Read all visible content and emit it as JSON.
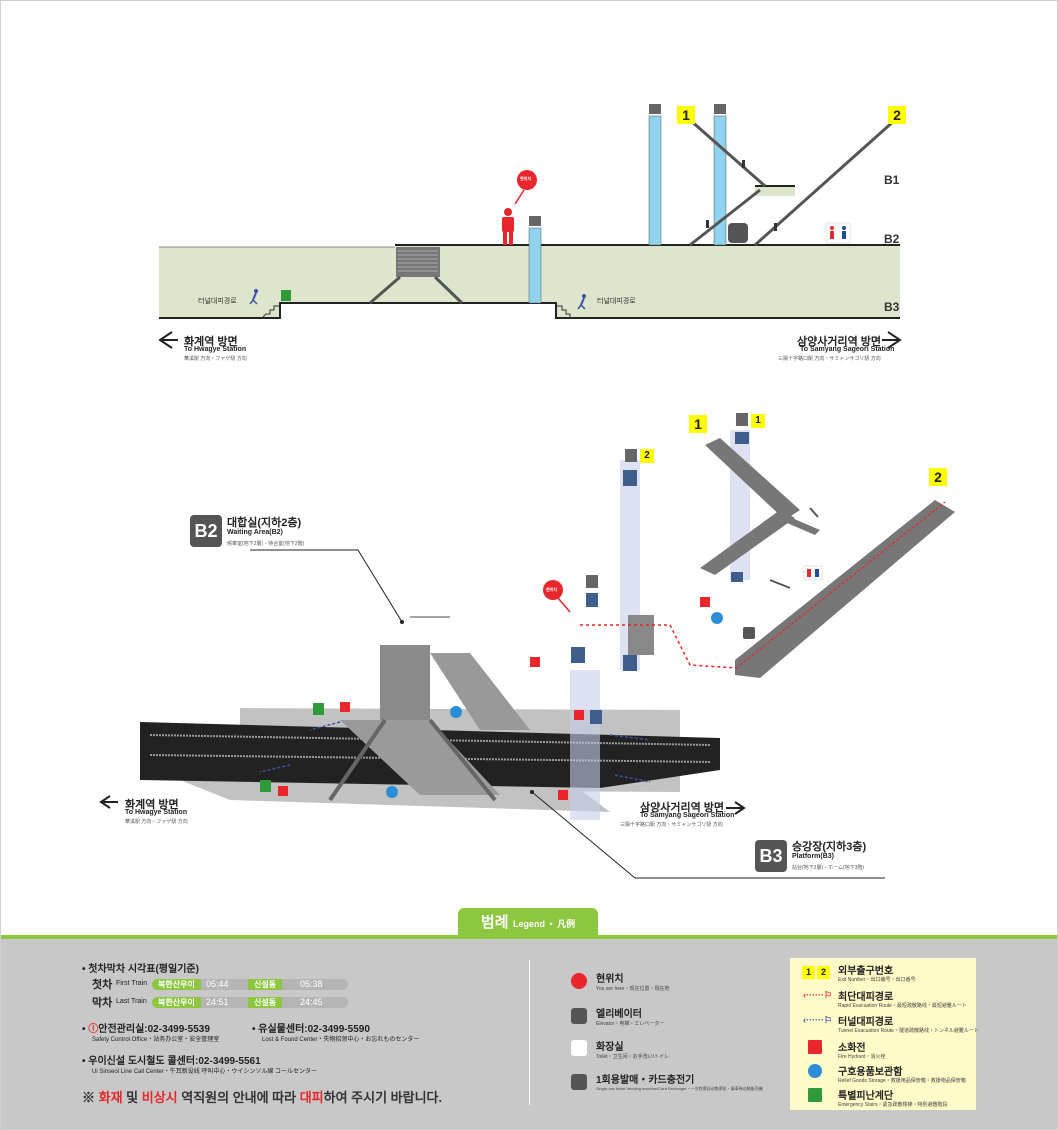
{
  "section_top": {
    "levels": [
      "B1",
      "B2",
      "B3"
    ],
    "exits": [
      "1",
      "2"
    ],
    "here_badge": "현위치",
    "tunnel_route_left": "터널대피경로",
    "tunnel_route_right": "터널대피경로",
    "left_dir": {
      "ko": "화계역 방면",
      "en": "To Hwagye Station",
      "jp": "華溪駅 方向・ファゲ駅 方向"
    },
    "right_dir": {
      "ko": "삼양사거리역 방면",
      "en": "To Samyang Sageori Station",
      "jp": "三陽十字路口駅 方向・サミャンサゴリ駅 方向"
    }
  },
  "section_iso": {
    "exits": [
      "1",
      "2"
    ],
    "elevator_nums": [
      "1",
      "2"
    ],
    "b2": {
      "code": "B2",
      "ko": "대합실(지하2층)",
      "en": "Waiting Area(B2)",
      "jp": "候車室(地下2層)・待合室(地下2階)"
    },
    "b3": {
      "code": "B3",
      "ko": "승강장(지하3층)",
      "en": "Platform(B3)",
      "jp": "站台(地下3層)・ホーム(地下3階)"
    },
    "here_badge": "현위치",
    "left_dir": {
      "ko": "화계역 방면",
      "en": "To Hwagye Station",
      "jp": "華溪駅 方向・ファゲ駅 方向"
    },
    "right_dir": {
      "ko": "삼양사거리역 방면",
      "en": "To Samyang Sageori Station",
      "jp": "三陽十字路口駅 方向・サミャンサゴリ駅 方向"
    }
  },
  "legend": {
    "title_ko": "범례",
    "title_en": "Legend",
    "title_cn": "凡例",
    "timetable_title": "첫차막차 시각표(평일기준)",
    "first_train": {
      "ko": "첫차",
      "en": "First Train",
      "rows": [
        {
          "station": "북한산우이",
          "time": "05:44"
        },
        {
          "station": "신설동",
          "time": "05:38"
        }
      ]
    },
    "last_train": {
      "ko": "막차",
      "en": "Last Train",
      "rows": [
        {
          "station": "북한산우이",
          "time": "24:51"
        },
        {
          "station": "신설동",
          "time": "24:45"
        }
      ]
    },
    "safety": {
      "ko": "안전관리실:02-3499-5539",
      "en": "Safety Control Office・站务办公室・安全管理室"
    },
    "lost_found": {
      "ko": "유실물센터:02-3499-5590",
      "en": "Lost & Found Center・失物招领中心・お忘れものセンター"
    },
    "call_center": {
      "ko": "우이신설 도시철도 콜센터:02-3499-5561",
      "en": "Ui Sinseol Line Call Center・牛耳新设线 呼叫中心・ウイシンソル線 コールセンター"
    },
    "notice": {
      "prefix": "※ ",
      "part1": "화재",
      "part2": " 및 ",
      "part3": "비상시",
      "part4": " 역직원의 안내에 따라 ",
      "part5": "대피",
      "part6": "하여 주시기 바랍니다."
    },
    "icons_mid": [
      {
        "name": "here",
        "ko": "현위치",
        "en": "You are here・现在位置・現在地"
      },
      {
        "name": "elevator",
        "ko": "엘리베이터",
        "en": "Elevator・电梯・エレベーター"
      },
      {
        "name": "toilet",
        "ko": "화장실",
        "en": "Toilet・卫生间・お手洗い/トイレ"
      },
      {
        "name": "ticket",
        "ko": "1회용발매・카드충전기",
        "en": "Single-use ticket Vending machine/Card Recharger・一次性票自动售票机・乗車券自動販売機"
      }
    ],
    "icons_right": [
      {
        "name": "exit-number",
        "ko": "외부출구번호",
        "en": "Exit Number・出口编号・出口番号",
        "nums": [
          "1",
          "2"
        ]
      },
      {
        "name": "rapid-evac",
        "ko": "최단대피경로",
        "en": "Rapid Evacuation Route・最短疏散路线・最短避難ルート"
      },
      {
        "name": "tunnel-evac",
        "ko": "터널대피경로",
        "en": "Tunnel Evacuation Route・隧道疏散路线・トンネル避難ルート"
      },
      {
        "name": "hydrant",
        "ko": "소화전",
        "en": "Fire Hydrant・消火栓"
      },
      {
        "name": "relief",
        "ko": "구호용품보관함",
        "en": "Relief Goods Storage・救援用品保管箱・救援物品保管箱"
      },
      {
        "name": "stairs",
        "ko": "특별피난계단",
        "en": "Emergency Stairs・紧急疏散楼梯・特別避難階段"
      }
    ]
  },
  "colors": {
    "green": "#8dc63f",
    "red": "#e8262b",
    "blue": "#3d4fa8",
    "legend_bg": "#c8c8c8",
    "platform_green": "#dde6cc",
    "elevator_blue": "#8fd3ef",
    "legend_yellow": "#fffbc8"
  }
}
